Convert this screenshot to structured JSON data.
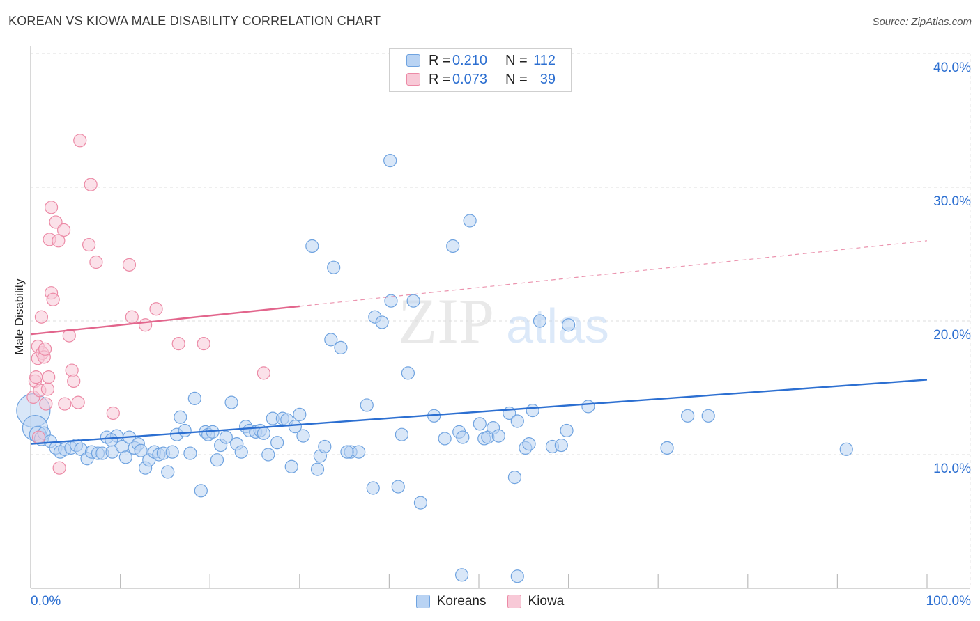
{
  "chart_data": {
    "type": "scatter",
    "title": "KOREAN VS KIOWA MALE DISABILITY CORRELATION CHART",
    "source": "Source: ZipAtlas.com",
    "xlabel": "",
    "ylabel": "Male Disability",
    "xlim": [
      0,
      100
    ],
    "ylim": [
      0,
      40
    ],
    "x_tick_labels": [
      "0.0%",
      "100.0%"
    ],
    "y_ticks": [
      10,
      20,
      30,
      40
    ],
    "y_tick_labels": [
      "10.0%",
      "20.0%",
      "30.0%",
      "40.0%"
    ],
    "grid": true,
    "watermark": {
      "zip": "ZIP",
      "atlas": "atlas"
    },
    "legend": [
      {
        "name": "Koreans",
        "r_label": "R =",
        "r_value": "0.210",
        "n_label": "N =",
        "n_value": "112",
        "color": "#6fa3e0",
        "fill": "#b9d3f3"
      },
      {
        "name": "Kiowa",
        "r_label": "R =",
        "r_value": "0.073",
        "n_label": "N =",
        "n_value": "39",
        "color": "#ec8aa6",
        "fill": "#f8c9d7"
      }
    ],
    "series": [
      {
        "name": "Koreans",
        "color": "#6fa3e0",
        "trend": {
          "x0": 0,
          "y0": 10.8,
          "x1": 100,
          "y1": 15.6,
          "solid_until": 100,
          "color": "#2c6fd1"
        },
        "points": [
          [
            0.3,
            13.3,
            24
          ],
          [
            0.5,
            12.0,
            18
          ],
          [
            0.8,
            11.5,
            12
          ],
          [
            1.2,
            11.2,
            10
          ],
          [
            1.5,
            11.6,
            9
          ],
          [
            2.2,
            11.0,
            9
          ],
          [
            2.8,
            10.5,
            9
          ],
          [
            3.3,
            10.2,
            9
          ],
          [
            3.8,
            10.4,
            9
          ],
          [
            4.5,
            10.5,
            9
          ],
          [
            5.1,
            10.7,
            9
          ],
          [
            5.6,
            10.4,
            9
          ],
          [
            6.3,
            9.7,
            9
          ],
          [
            6.8,
            10.2,
            9
          ],
          [
            7.5,
            10.1,
            9
          ],
          [
            8.0,
            10.1,
            9
          ],
          [
            8.5,
            11.3,
            9
          ],
          [
            9.1,
            10.2,
            9
          ],
          [
            9.6,
            11.4,
            9
          ],
          [
            10.2,
            10.6,
            9
          ],
          [
            10.6,
            9.8,
            9
          ],
          [
            11.0,
            11.3,
            9
          ],
          [
            11.6,
            10.5,
            9
          ],
          [
            12.0,
            10.8,
            9
          ],
          [
            12.3,
            10.3,
            9
          ],
          [
            12.8,
            9.0,
            9
          ],
          [
            13.2,
            9.6,
            9
          ],
          [
            13.8,
            10.2,
            9
          ],
          [
            14.3,
            10.0,
            9
          ],
          [
            14.8,
            10.1,
            9
          ],
          [
            15.3,
            8.7,
            9
          ],
          [
            15.8,
            10.2,
            9
          ],
          [
            16.3,
            11.5,
            9
          ],
          [
            16.7,
            12.8,
            9
          ],
          [
            17.2,
            11.8,
            9
          ],
          [
            17.8,
            10.1,
            9
          ],
          [
            18.3,
            14.2,
            9
          ],
          [
            19.0,
            7.3,
            9
          ],
          [
            19.5,
            11.7,
            9
          ],
          [
            19.8,
            11.5,
            9
          ],
          [
            20.3,
            11.7,
            9
          ],
          [
            20.8,
            9.6,
            9
          ],
          [
            21.2,
            10.7,
            9
          ],
          [
            21.8,
            11.3,
            9
          ],
          [
            22.4,
            13.9,
            9
          ],
          [
            23.0,
            10.8,
            9
          ],
          [
            23.5,
            10.2,
            9
          ],
          [
            24.0,
            12.1,
            9
          ],
          [
            24.4,
            11.8,
            9
          ],
          [
            25.1,
            11.7,
            9
          ],
          [
            25.6,
            11.8,
            9
          ],
          [
            26.0,
            11.6,
            9
          ],
          [
            26.5,
            10.0,
            9
          ],
          [
            27.0,
            12.7,
            9
          ],
          [
            27.5,
            10.9,
            9
          ],
          [
            28.1,
            12.7,
            9
          ],
          [
            28.6,
            12.6,
            9
          ],
          [
            29.1,
            9.1,
            9
          ],
          [
            29.5,
            12.1,
            9
          ],
          [
            30.0,
            13.0,
            9
          ],
          [
            30.4,
            11.4,
            9
          ],
          [
            31.4,
            25.6,
            9
          ],
          [
            32.0,
            8.9,
            9
          ],
          [
            32.3,
            9.9,
            9
          ],
          [
            32.8,
            10.6,
            9
          ],
          [
            33.5,
            18.6,
            9
          ],
          [
            33.8,
            24.0,
            9
          ],
          [
            34.6,
            18.0,
            9
          ],
          [
            35.7,
            10.2,
            9
          ],
          [
            36.6,
            10.2,
            9
          ],
          [
            37.5,
            13.7,
            9
          ],
          [
            38.2,
            7.5,
            9
          ],
          [
            38.4,
            20.3,
            9
          ],
          [
            39.2,
            19.9,
            9
          ],
          [
            40.1,
            32.0,
            9
          ],
          [
            40.2,
            21.5,
            9
          ],
          [
            41.4,
            11.5,
            9
          ],
          [
            42.1,
            16.1,
            9
          ],
          [
            42.7,
            21.5,
            9
          ],
          [
            43.5,
            6.4,
            9
          ],
          [
            45.0,
            12.9,
            9
          ],
          [
            46.2,
            11.2,
            9
          ],
          [
            47.1,
            25.6,
            9
          ],
          [
            47.8,
            11.7,
            9
          ],
          [
            48.2,
            11.3,
            9
          ],
          [
            49.0,
            27.5,
            9
          ],
          [
            50.1,
            12.3,
            9
          ],
          [
            50.6,
            11.2,
            9
          ],
          [
            51.0,
            11.3,
            9
          ],
          [
            51.6,
            12.0,
            9
          ],
          [
            52.2,
            11.4,
            9
          ],
          [
            53.4,
            13.1,
            9
          ],
          [
            54.0,
            8.3,
            9
          ],
          [
            54.3,
            12.5,
            9
          ],
          [
            55.2,
            10.5,
            9
          ],
          [
            55.6,
            10.8,
            9
          ],
          [
            56.0,
            13.3,
            9
          ],
          [
            56.8,
            20.0,
            9
          ],
          [
            58.2,
            10.6,
            9
          ],
          [
            59.2,
            10.7,
            9
          ],
          [
            59.8,
            11.8,
            9
          ],
          [
            60.0,
            19.7,
            9
          ],
          [
            62.2,
            13.6,
            9
          ],
          [
            71.0,
            10.5,
            9
          ],
          [
            73.3,
            12.9,
            9
          ],
          [
            75.6,
            12.9,
            9
          ],
          [
            91.0,
            10.4,
            9
          ],
          [
            35.3,
            10.2,
            9
          ],
          [
            48.1,
            1.0,
            9
          ],
          [
            54.3,
            0.9,
            9
          ],
          [
            9.0,
            11.1,
            9
          ],
          [
            41.0,
            7.6,
            9
          ]
        ]
      },
      {
        "name": "Kiowa",
        "color": "#ec8aa6",
        "trend": {
          "x0": 0,
          "y0": 19.0,
          "x1": 100,
          "y1": 26.0,
          "solid_until": 30,
          "color": "#e2658c"
        },
        "points": [
          [
            0.3,
            14.3,
            9
          ],
          [
            0.5,
            15.5,
            9
          ],
          [
            0.6,
            15.8,
            9
          ],
          [
            0.8,
            17.2,
            9
          ],
          [
            0.8,
            18.1,
            9
          ],
          [
            0.9,
            11.3,
            9
          ],
          [
            1.0,
            14.8,
            9
          ],
          [
            1.2,
            20.3,
            9
          ],
          [
            1.3,
            17.6,
            9
          ],
          [
            1.5,
            17.3,
            9
          ],
          [
            1.6,
            17.9,
            9
          ],
          [
            1.7,
            13.8,
            9
          ],
          [
            1.9,
            14.9,
            9
          ],
          [
            2.0,
            15.8,
            9
          ],
          [
            2.1,
            26.1,
            9
          ],
          [
            2.3,
            28.5,
            9
          ],
          [
            2.3,
            22.1,
            9
          ],
          [
            2.5,
            21.6,
            9
          ],
          [
            2.8,
            27.4,
            9
          ],
          [
            3.1,
            26.0,
            9
          ],
          [
            3.2,
            9.0,
            9
          ],
          [
            3.7,
            26.8,
            9
          ],
          [
            3.8,
            13.8,
            9
          ],
          [
            4.3,
            18.9,
            9
          ],
          [
            4.6,
            16.3,
            9
          ],
          [
            4.8,
            15.5,
            9
          ],
          [
            5.3,
            13.9,
            9
          ],
          [
            5.5,
            33.5,
            9
          ],
          [
            6.5,
            25.7,
            9
          ],
          [
            6.7,
            30.2,
            9
          ],
          [
            7.3,
            24.4,
            9
          ],
          [
            9.2,
            13.1,
            9
          ],
          [
            11.0,
            24.2,
            9
          ],
          [
            11.3,
            20.3,
            9
          ],
          [
            12.8,
            19.7,
            9
          ],
          [
            14.0,
            20.9,
            9
          ],
          [
            16.5,
            18.3,
            9
          ],
          [
            19.3,
            18.3,
            9
          ],
          [
            26.0,
            16.1,
            9
          ]
        ]
      }
    ]
  }
}
